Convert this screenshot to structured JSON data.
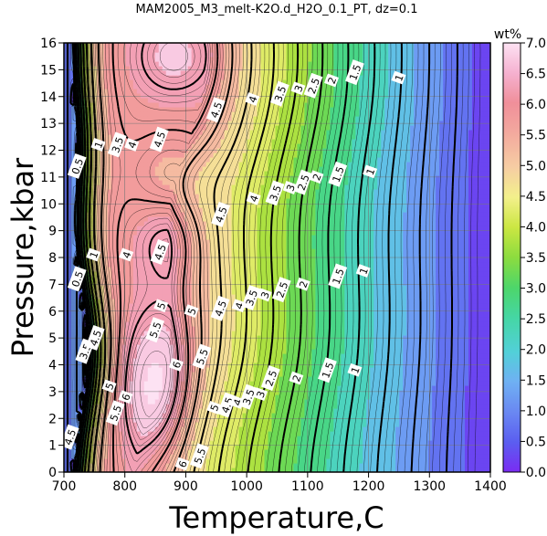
{
  "chart_data": {
    "type": "heatmap",
    "title": "MAM2005_M3_melt-K2O.d_H2O_0.1_PT, dz=0.1",
    "xlabel": "Temperature,C",
    "ylabel": "Pressure,kbar",
    "xlim": [
      700,
      1400
    ],
    "ylim": [
      0,
      16
    ],
    "x_ticks": [
      "700",
      "800",
      "900",
      "1000",
      "1100",
      "1200",
      "1300",
      "1400"
    ],
    "y_ticks": [
      "0",
      "1",
      "2",
      "3",
      "4",
      "5",
      "6",
      "7",
      "8",
      "9",
      "10",
      "11",
      "12",
      "13",
      "14",
      "15",
      "16"
    ],
    "grid": true,
    "colorbar": {
      "label": "wt%",
      "range": [
        0,
        7
      ],
      "ticks": [
        "0.0",
        "0.5",
        "1.0",
        "1.5",
        "2.0",
        "2.5",
        "3.0",
        "3.5",
        "4.0",
        "4.5",
        "5.0",
        "5.5",
        "6.0",
        "6.5",
        "7.0"
      ]
    },
    "contour_levels": [
      0.5,
      1,
      1.5,
      2,
      2.5,
      3,
      3.5,
      4,
      4.5,
      5,
      5.5,
      6
    ],
    "contour_labels": [
      {
        "t": "1",
        "x": 1250,
        "y": 14.7
      },
      {
        "t": "1.5",
        "x": 1178,
        "y": 14.9
      },
      {
        "t": "2",
        "x": 1140,
        "y": 14.6
      },
      {
        "t": "2.5",
        "x": 1110,
        "y": 14.4
      },
      {
        "t": "3",
        "x": 1085,
        "y": 14.3
      },
      {
        "t": "3.5",
        "x": 1055,
        "y": 14.1
      },
      {
        "t": "4",
        "x": 1010,
        "y": 13.9
      },
      {
        "t": "4.5",
        "x": 950,
        "y": 13.5
      },
      {
        "t": "1.5",
        "x": 1150,
        "y": 11.1
      },
      {
        "t": "1",
        "x": 1203,
        "y": 11.2
      },
      {
        "t": "2",
        "x": 1115,
        "y": 11.0
      },
      {
        "t": "2.5",
        "x": 1093,
        "y": 10.8
      },
      {
        "t": "3",
        "x": 1072,
        "y": 10.6
      },
      {
        "t": "3.5",
        "x": 1047,
        "y": 10.4
      },
      {
        "t": "4",
        "x": 1012,
        "y": 10.2
      },
      {
        "t": "4.5",
        "x": 958,
        "y": 9.6
      },
      {
        "t": "4.5",
        "x": 857,
        "y": 12.4
      },
      {
        "t": "4",
        "x": 812,
        "y": 12.2
      },
      {
        "t": "3.5",
        "x": 788,
        "y": 12.2
      },
      {
        "t": "1",
        "x": 757,
        "y": 12.2
      },
      {
        "t": "0.5",
        "x": 722,
        "y": 11.4
      },
      {
        "t": "4.5",
        "x": 858,
        "y": 8.2
      },
      {
        "t": "4",
        "x": 803,
        "y": 8.1
      },
      {
        "t": "1",
        "x": 749,
        "y": 8.1
      },
      {
        "t": "0.5",
        "x": 722,
        "y": 7.2
      },
      {
        "t": "5",
        "x": 910,
        "y": 6.0
      },
      {
        "t": "5",
        "x": 860,
        "y": 6.2
      },
      {
        "t": "5.5",
        "x": 850,
        "y": 5.3
      },
      {
        "t": "5.5",
        "x": 927,
        "y": 4.3
      },
      {
        "t": "6",
        "x": 885,
        "y": 4.0
      },
      {
        "t": "6",
        "x": 802,
        "y": 2.8
      },
      {
        "t": "5",
        "x": 775,
        "y": 3.2
      },
      {
        "t": "4.5",
        "x": 957,
        "y": 6.1
      },
      {
        "t": "4",
        "x": 988,
        "y": 6.2
      },
      {
        "t": "3.5",
        "x": 1008,
        "y": 6.5
      },
      {
        "t": "3",
        "x": 1030,
        "y": 6.6
      },
      {
        "t": "2.5",
        "x": 1058,
        "y": 6.8
      },
      {
        "t": "2",
        "x": 1093,
        "y": 7.0
      },
      {
        "t": "1.5",
        "x": 1150,
        "y": 7.3
      },
      {
        "t": "1",
        "x": 1192,
        "y": 7.5
      },
      {
        "t": "5",
        "x": 947,
        "y": 2.4
      },
      {
        "t": "4.5",
        "x": 968,
        "y": 2.5
      },
      {
        "t": "4",
        "x": 985,
        "y": 2.6
      },
      {
        "t": "3.5",
        "x": 1003,
        "y": 2.8
      },
      {
        "t": "3",
        "x": 1023,
        "y": 2.9
      },
      {
        "t": "2.5",
        "x": 1040,
        "y": 3.5
      },
      {
        "t": "2",
        "x": 1082,
        "y": 3.5
      },
      {
        "t": "1.5",
        "x": 1133,
        "y": 3.8
      },
      {
        "t": "1",
        "x": 1178,
        "y": 3.8
      },
      {
        "t": "5.5",
        "x": 785,
        "y": 2.2
      },
      {
        "t": "5.5",
        "x": 923,
        "y": 0.6
      },
      {
        "t": "6",
        "x": 895,
        "y": 0.3
      },
      {
        "t": "4.5",
        "x": 710,
        "y": 1.3
      },
      {
        "t": "3.5",
        "x": 735,
        "y": 4.5
      },
      {
        "t": "4.5",
        "x": 752,
        "y": 5.0
      }
    ]
  }
}
